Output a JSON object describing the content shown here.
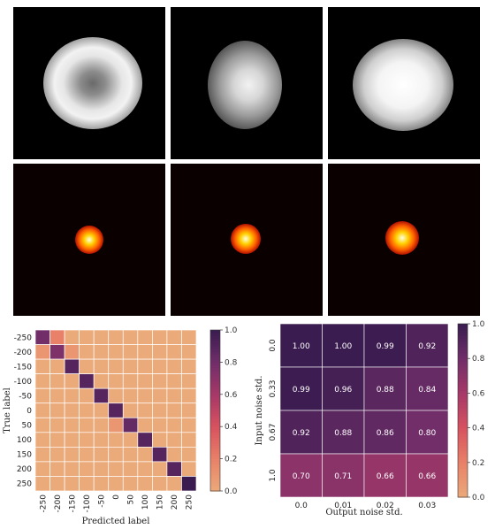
{
  "panels": {
    "row1_names": [
      "gray-object-1",
      "gray-object-2",
      "gray-object-3"
    ],
    "row2_names": [
      "psf-spot-1",
      "psf-spot-2",
      "psf-spot-3"
    ]
  },
  "chart_data": [
    {
      "type": "heatmap",
      "name": "confusion-matrix",
      "title": "",
      "xlabel": "Predicted label",
      "ylabel": "True label",
      "x_categories": [
        "-250",
        "-200",
        "-150",
        "-100",
        "-50",
        "0",
        "50",
        "100",
        "150",
        "200",
        "250"
      ],
      "y_categories": [
        "-250",
        "-200",
        "-150",
        "-100",
        "-50",
        "0",
        "50",
        "100",
        "150",
        "200",
        "250"
      ],
      "values": [
        [
          0.8,
          0.2,
          0,
          0,
          0,
          0,
          0,
          0,
          0,
          0,
          0
        ],
        [
          0.1,
          0.75,
          0.1,
          0,
          0,
          0,
          0,
          0,
          0,
          0,
          0
        ],
        [
          0,
          0,
          0.9,
          0,
          0,
          0,
          0,
          0,
          0,
          0,
          0
        ],
        [
          0,
          0,
          0,
          0.9,
          0,
          0,
          0,
          0,
          0,
          0,
          0
        ],
        [
          0,
          0,
          0,
          0,
          0.9,
          0,
          0,
          0,
          0,
          0,
          0
        ],
        [
          0,
          0,
          0,
          0,
          0,
          0.9,
          0,
          0,
          0,
          0,
          0
        ],
        [
          0,
          0,
          0,
          0,
          0,
          0.1,
          0.85,
          0,
          0,
          0,
          0
        ],
        [
          0,
          0,
          0,
          0,
          0,
          0,
          0,
          0.9,
          0,
          0,
          0
        ],
        [
          0,
          0,
          0,
          0,
          0,
          0,
          0,
          0,
          0.9,
          0,
          0
        ],
        [
          0,
          0,
          0,
          0,
          0,
          0,
          0,
          0,
          0,
          0.9,
          0
        ],
        [
          0,
          0,
          0,
          0,
          0,
          0,
          0,
          0,
          0,
          0,
          1.0
        ]
      ],
      "colorbar": {
        "range": [
          0.0,
          1.0
        ],
        "ticks": [
          "0.0",
          "0.2",
          "0.4",
          "0.6",
          "0.8",
          "1.0"
        ]
      }
    },
    {
      "type": "heatmap",
      "name": "noise-accuracy",
      "title": "",
      "xlabel": "Output noise std.",
      "ylabel": "Input noise std.",
      "x_categories": [
        "0.0",
        "0.01",
        "0.02",
        "0.03"
      ],
      "y_categories": [
        "0.0",
        "0.33",
        "0.67",
        "1.0"
      ],
      "values": [
        [
          1.0,
          1.0,
          0.99,
          0.92
        ],
        [
          0.99,
          0.96,
          0.88,
          0.84
        ],
        [
          0.92,
          0.88,
          0.86,
          0.8
        ],
        [
          0.7,
          0.71,
          0.66,
          0.66
        ]
      ],
      "value_labels": [
        [
          "1.00",
          "1.00",
          "0.99",
          "0.92"
        ],
        [
          "0.99",
          "0.96",
          "0.88",
          "0.84"
        ],
        [
          "0.92",
          "0.88",
          "0.86",
          "0.80"
        ],
        [
          "0.70",
          "0.71",
          "0.66",
          "0.66"
        ]
      ],
      "colorbar": {
        "range": [
          0.0,
          1.0
        ],
        "ticks": [
          "0.0",
          "0.2",
          "0.4",
          "0.6",
          "0.8",
          "1.0"
        ]
      }
    }
  ]
}
